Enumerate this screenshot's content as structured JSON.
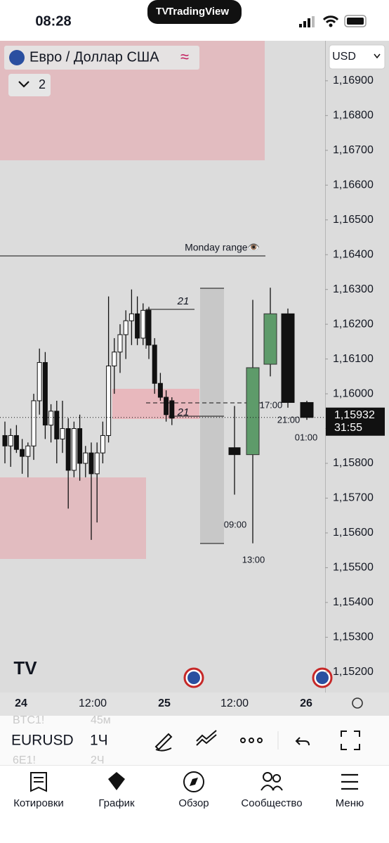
{
  "status_bar": {
    "time": "08:28",
    "app": "TradingView"
  },
  "header": {
    "title": "Евро / Доллар США",
    "indicators": "2",
    "currency": "USD"
  },
  "annotations": [
    "Monday range👁️",
    "21",
    "21",
    "09:00",
    "13:00",
    "17:00",
    "21:00",
    "01:00"
  ],
  "chart_data": {
    "type": "candlestick",
    "ylim": [
      1.15141,
      1.17015
    ],
    "yticks": [
      {
        "value": 1.169,
        "label": "1,16900"
      },
      {
        "value": 1.168,
        "label": "1,16800"
      },
      {
        "value": 1.167,
        "label": "1,16700"
      },
      {
        "value": 1.166,
        "label": "1,16600"
      },
      {
        "value": 1.165,
        "label": "1,16500"
      },
      {
        "value": 1.164,
        "label": "1,16400"
      },
      {
        "value": 1.163,
        "label": "1,16300"
      },
      {
        "value": 1.162,
        "label": "1,16200"
      },
      {
        "value": 1.161,
        "label": "1,16100"
      },
      {
        "value": 1.16,
        "label": "1,16000"
      },
      {
        "value": 1.159,
        "label": "1,15900"
      },
      {
        "value": 1.158,
        "label": "1,15800"
      },
      {
        "value": 1.157,
        "label": "1,15700"
      },
      {
        "value": 1.156,
        "label": "1,15600"
      },
      {
        "value": 1.155,
        "label": "1,15500"
      },
      {
        "value": 1.154,
        "label": "1,15400"
      },
      {
        "value": 1.153,
        "label": "1,15300"
      },
      {
        "value": 1.152,
        "label": "1,15200"
      }
    ],
    "x_labels": [
      "24",
      "12:00",
      "25",
      "12:00",
      "26"
    ],
    "last_price": {
      "value": 1.15932,
      "label": "1,15932"
    },
    "countdown": "31:55",
    "up_color": "#ffffff",
    "down_color": "#111111",
    "session_up_color": "#5e9b6a",
    "candles": [
      {
        "o": 1.1588,
        "h": 1.1592,
        "l": 1.158,
        "c": 1.1585
      },
      {
        "o": 1.1585,
        "h": 1.159,
        "l": 1.1579,
        "c": 1.1588
      },
      {
        "o": 1.1588,
        "h": 1.1591,
        "l": 1.1583,
        "c": 1.1584
      },
      {
        "o": 1.1584,
        "h": 1.1587,
        "l": 1.1577,
        "c": 1.1582
      },
      {
        "o": 1.1582,
        "h": 1.1586,
        "l": 1.1576,
        "c": 1.1585
      },
      {
        "o": 1.1585,
        "h": 1.16,
        "l": 1.1581,
        "c": 1.1598
      },
      {
        "o": 1.1598,
        "h": 1.1613,
        "l": 1.1594,
        "c": 1.1609
      },
      {
        "o": 1.1609,
        "h": 1.1612,
        "l": 1.1587,
        "c": 1.1591
      },
      {
        "o": 1.1591,
        "h": 1.1597,
        "l": 1.1586,
        "c": 1.1595
      },
      {
        "o": 1.1595,
        "h": 1.1598,
        "l": 1.158,
        "c": 1.1587
      },
      {
        "o": 1.1587,
        "h": 1.1598,
        "l": 1.1583,
        "c": 1.159
      },
      {
        "o": 1.159,
        "h": 1.1593,
        "l": 1.1567,
        "c": 1.1578
      },
      {
        "o": 1.1578,
        "h": 1.1592,
        "l": 1.1576,
        "c": 1.159
      },
      {
        "o": 1.159,
        "h": 1.1594,
        "l": 1.1575,
        "c": 1.158
      },
      {
        "o": 1.158,
        "h": 1.1585,
        "l": 1.1576,
        "c": 1.1583
      },
      {
        "o": 1.1583,
        "h": 1.1586,
        "l": 1.1558,
        "c": 1.1577
      },
      {
        "o": 1.1577,
        "h": 1.1586,
        "l": 1.1563,
        "c": 1.1583
      },
      {
        "o": 1.1583,
        "h": 1.1592,
        "l": 1.158,
        "c": 1.1588
      },
      {
        "o": 1.1588,
        "h": 1.1628,
        "l": 1.1586,
        "c": 1.1608
      },
      {
        "o": 1.1608,
        "h": 1.1616,
        "l": 1.16,
        "c": 1.1612
      },
      {
        "o": 1.1612,
        "h": 1.162,
        "l": 1.1606,
        "c": 1.1617
      },
      {
        "o": 1.1617,
        "h": 1.1624,
        "l": 1.161,
        "c": 1.1621
      },
      {
        "o": 1.1621,
        "h": 1.163,
        "l": 1.1614,
        "c": 1.1623
      },
      {
        "o": 1.1623,
        "h": 1.1628,
        "l": 1.1614,
        "c": 1.1616
      },
      {
        "o": 1.1616,
        "h": 1.1626,
        "l": 1.1614,
        "c": 1.1624
      },
      {
        "o": 1.1624,
        "h": 1.1625,
        "l": 1.161,
        "c": 1.1614
      },
      {
        "o": 1.1614,
        "h": 1.1616,
        "l": 1.16,
        "c": 1.1603
      },
      {
        "o": 1.1603,
        "h": 1.1606,
        "l": 1.1598,
        "c": 1.1599
      },
      {
        "o": 1.1599,
        "h": 1.1601,
        "l": 1.1592,
        "c": 1.1594
      },
      {
        "o": 1.1598,
        "h": 1.1599,
        "l": 1.1591,
        "c": 1.1593
      }
    ],
    "session_candles": [
      {
        "o": 1.15845,
        "h": 1.15965,
        "l": 1.1571,
        "c": 1.15825
      },
      {
        "o": 1.15825,
        "h": 1.1627,
        "l": 1.1557,
        "c": 1.16075
      },
      {
        "o": 1.16085,
        "h": 1.16305,
        "l": 1.1605,
        "c": 1.1623
      },
      {
        "o": 1.1623,
        "h": 1.16245,
        "l": 1.1596,
        "c": 1.15975
      },
      {
        "o": 1.15975,
        "h": 1.1598,
        "l": 1.15925,
        "c": 1.15932
      }
    ]
  },
  "toolbar": {
    "prev_symbol": "BTC1!",
    "prev_interval": "45м",
    "symbol": "EURUSD",
    "interval": "1Ч",
    "next_symbol": "6E1!",
    "next_interval": "2Ч"
  },
  "tabs": [
    "Котировки",
    "График",
    "Обзор",
    "Сообщество",
    "Меню"
  ]
}
